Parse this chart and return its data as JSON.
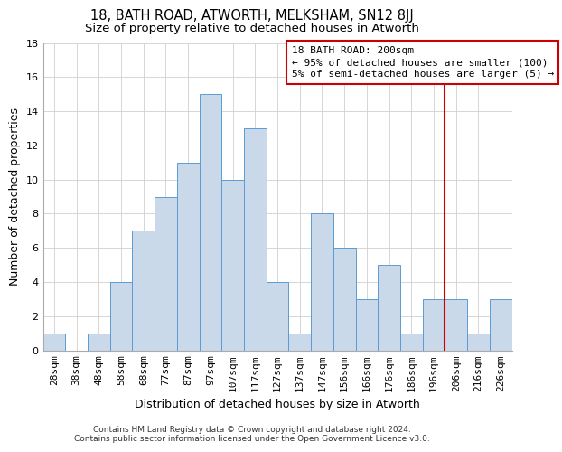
{
  "title": "18, BATH ROAD, ATWORTH, MELKSHAM, SN12 8JJ",
  "subtitle": "Size of property relative to detached houses in Atworth",
  "xlabel": "Distribution of detached houses by size in Atworth",
  "ylabel": "Number of detached properties",
  "categories": [
    "28sqm",
    "38sqm",
    "48sqm",
    "58sqm",
    "68sqm",
    "77sqm",
    "87sqm",
    "97sqm",
    "107sqm",
    "117sqm",
    "127sqm",
    "137sqm",
    "147sqm",
    "156sqm",
    "166sqm",
    "176sqm",
    "186sqm",
    "196sqm",
    "206sqm",
    "216sqm",
    "226sqm"
  ],
  "values": [
    1,
    0,
    1,
    4,
    7,
    9,
    11,
    15,
    10,
    13,
    4,
    1,
    8,
    6,
    3,
    5,
    1,
    3,
    3,
    1,
    3
  ],
  "bar_color": "#c9d9ea",
  "bar_edge_color": "#5b9bd5",
  "grid_color": "#d0d0d0",
  "vline_color": "#cc0000",
  "annotation_box_color": "#cc0000",
  "annotation_line1": "18 BATH ROAD: 200sqm",
  "annotation_line2": "← 95% of detached houses are smaller (100)",
  "annotation_line3": "5% of semi-detached houses are larger (5) →",
  "footnote1": "Contains HM Land Registry data © Crown copyright and database right 2024.",
  "footnote2": "Contains public sector information licensed under the Open Government Licence v3.0.",
  "ylim": [
    0,
    18
  ],
  "yticks": [
    0,
    2,
    4,
    6,
    8,
    10,
    12,
    14,
    16,
    18
  ],
  "title_fontsize": 10.5,
  "subtitle_fontsize": 9.5,
  "ylabel_fontsize": 9,
  "xlabel_fontsize": 9,
  "tick_fontsize": 8,
  "footnote_fontsize": 6.5,
  "annotation_fontsize": 8
}
